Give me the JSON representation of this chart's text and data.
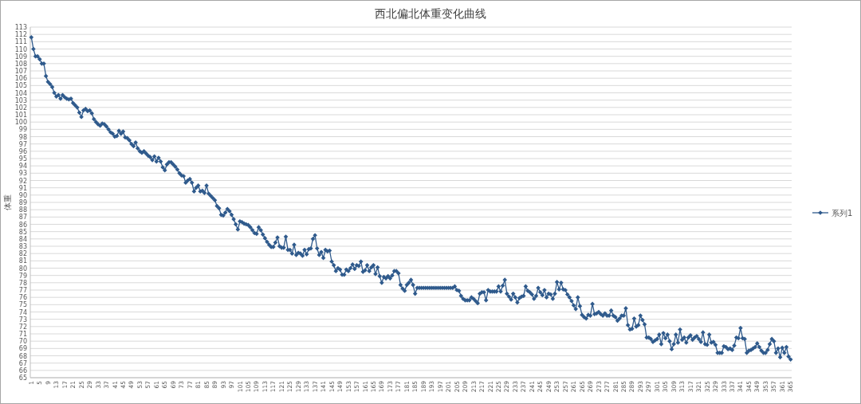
{
  "chart_data": {
    "type": "line",
    "title": "西北偏北体重变化曲线",
    "ylabel": "体重",
    "categories": [
      "1",
      null,
      null,
      null,
      "5",
      null,
      null,
      null,
      "9",
      null,
      null,
      null,
      "13",
      null,
      null,
      null,
      "17",
      null,
      null,
      null,
      "21",
      null,
      null,
      null,
      "25",
      null,
      null,
      null,
      "29",
      null,
      null,
      null,
      "33",
      null,
      null,
      null,
      "37",
      null,
      null,
      null,
      "41",
      null,
      null,
      null,
      "45",
      null,
      null,
      null,
      "49",
      null,
      null,
      null,
      "53",
      null,
      null,
      null,
      "57",
      null,
      null,
      null,
      "61",
      null,
      null,
      null,
      "65",
      null,
      null,
      null,
      "69",
      null,
      null,
      null,
      "73",
      null,
      null,
      null,
      "77",
      null,
      null,
      null,
      "81",
      null,
      null,
      null,
      "85",
      null,
      null,
      null,
      "89",
      null,
      null,
      null,
      "93",
      null,
      null,
      null,
      "97",
      null,
      null,
      null,
      "101",
      null,
      null,
      null,
      "105",
      null,
      null,
      null,
      "109",
      null,
      null,
      null,
      "113",
      null,
      null,
      null,
      "117",
      null,
      null,
      null,
      "121",
      null,
      null,
      null,
      "125",
      null,
      null,
      null,
      "129",
      null,
      null,
      null,
      "133",
      null,
      null,
      null,
      "137",
      null,
      null,
      null,
      "141",
      null,
      null,
      null,
      "145",
      null,
      null,
      null,
      "149",
      null,
      null,
      null,
      "153",
      null,
      null,
      null,
      "157",
      null,
      null,
      null,
      "161",
      null,
      null,
      null,
      "165",
      null,
      null,
      null,
      "169",
      null,
      null,
      null,
      "173",
      null,
      null,
      null,
      "177",
      null,
      null,
      null,
      "181",
      null,
      null,
      null,
      "185",
      null,
      null,
      null,
      "189",
      null,
      null,
      null,
      "193",
      null,
      null,
      null,
      "197",
      null,
      null,
      null,
      "201",
      null,
      null,
      null,
      "205",
      null,
      null,
      null,
      "209",
      null,
      null,
      null,
      "213",
      null,
      null,
      null,
      "217",
      null,
      null,
      null,
      "221",
      null,
      null,
      null,
      "225",
      null,
      null,
      null,
      "229",
      null,
      null,
      null,
      "233",
      null,
      null,
      null,
      "237",
      null,
      null,
      null,
      "241",
      null,
      null,
      null,
      "245",
      null,
      null,
      null,
      "249",
      null,
      null,
      null,
      "253",
      null,
      null,
      null,
      "257",
      null,
      null,
      null,
      "261",
      null,
      null,
      null,
      "265",
      null,
      null,
      null,
      "269",
      null,
      null,
      null,
      "273",
      null,
      null,
      null,
      "277",
      null,
      null,
      null,
      "281",
      null,
      null,
      null,
      "285",
      null,
      null,
      null,
      "289",
      null,
      null,
      null,
      "293",
      null,
      null,
      null,
      "297",
      null,
      null,
      null,
      "301",
      null,
      null,
      null,
      "305",
      null,
      null,
      null,
      "309",
      null,
      null,
      null,
      "313",
      null,
      null,
      null,
      "317",
      null,
      null,
      null,
      "321",
      null,
      null,
      null,
      "325",
      null,
      null,
      null,
      "329",
      null,
      null,
      null,
      "333",
      null,
      null,
      null,
      "337",
      null,
      null,
      null,
      "341",
      null,
      null,
      null,
      "345",
      null,
      null,
      null,
      "349",
      null,
      null,
      null,
      "353",
      null,
      null,
      null,
      "357",
      null,
      null,
      null,
      "361",
      null,
      null,
      null,
      "365"
    ],
    "series": [
      {
        "name": "系列1",
        "color": "#2f5a8c",
        "values": [
          111.6,
          110.0,
          109.0,
          109.0,
          108.6,
          108.0,
          108.0,
          106.3,
          105.5,
          105.2,
          104.8,
          104.0,
          103.5,
          103.7,
          103.2,
          103.7,
          103.4,
          103.2,
          103.1,
          103.2,
          102.6,
          102.3,
          102.0,
          101.3,
          100.7,
          101.6,
          101.8,
          101.5,
          101.6,
          101.2,
          100.4,
          100.0,
          99.7,
          99.5,
          99.8,
          99.7,
          99.4,
          99.0,
          98.6,
          98.4,
          98.0,
          98.1,
          98.8,
          98.4,
          98.7,
          97.9,
          97.8,
          97.5,
          97.0,
          96.7,
          97.2,
          96.4,
          96.0,
          95.8,
          96.0,
          95.7,
          95.4,
          95.2,
          94.8,
          95.3,
          94.6,
          95.1,
          94.6,
          93.8,
          93.4,
          94.2,
          94.5,
          94.5,
          94.2,
          93.9,
          93.5,
          93.0,
          92.7,
          92.6,
          91.7,
          92.0,
          92.2,
          91.7,
          90.5,
          91.0,
          91.3,
          90.5,
          90.6,
          90.3,
          91.3,
          90.2,
          89.9,
          89.6,
          89.3,
          88.5,
          88.2,
          87.3,
          87.2,
          87.6,
          88.1,
          87.8,
          87.3,
          86.7,
          86.0,
          85.3,
          86.4,
          86.3,
          86.1,
          86.0,
          85.9,
          85.6,
          85.2,
          84.8,
          84.7,
          85.6,
          85.2,
          84.6,
          84.1,
          83.6,
          83.2,
          82.9,
          82.9,
          83.5,
          84.2,
          83.0,
          82.8,
          82.8,
          84.3,
          82.5,
          82.5,
          82.0,
          83.2,
          81.8,
          82.1,
          82.0,
          81.7,
          82.5,
          81.9,
          82.6,
          82.7,
          84.0,
          84.5,
          82.7,
          81.8,
          82.2,
          81.4,
          82.5,
          82.3,
          82.4,
          80.9,
          80.4,
          79.6,
          80.0,
          79.8,
          79.1,
          79.1,
          79.8,
          79.6,
          80.0,
          80.5,
          79.9,
          80.4,
          80.3,
          80.9,
          79.5,
          79.7,
          80.4,
          79.6,
          80.1,
          80.4,
          79.2,
          80.1,
          78.9,
          78.0,
          78.8,
          78.6,
          78.9,
          78.6,
          79.0,
          79.6,
          79.6,
          79.3,
          77.7,
          77.2,
          76.9,
          77.7,
          78.0,
          78.4,
          77.7,
          76.5,
          77.3,
          77.3,
          77.3,
          77.3,
          77.3,
          77.3,
          77.3,
          77.3,
          77.3,
          77.3,
          77.3,
          77.3,
          77.3,
          77.3,
          77.3,
          77.3,
          77.3,
          77.3,
          77.5,
          77.0,
          76.9,
          76.2,
          75.8,
          75.6,
          75.6,
          75.6,
          76.0,
          75.8,
          75.5,
          75.2,
          76.5,
          76.7,
          76.7,
          75.6,
          77.0,
          76.8,
          76.8,
          76.8,
          76.8,
          77.5,
          76.8,
          77.6,
          78.4,
          76.5,
          76.1,
          75.7,
          76.5,
          76.0,
          75.3,
          75.9,
          76.1,
          76.2,
          77.5,
          76.9,
          76.7,
          76.4,
          75.8,
          76.2,
          77.3,
          76.7,
          76.3,
          77.0,
          76.0,
          76.5,
          76.4,
          75.8,
          76.5,
          78.1,
          77.1,
          78.0,
          77.1,
          77.0,
          76.4,
          76.0,
          75.5,
          74.9,
          74.4,
          76.0,
          74.8,
          73.6,
          73.3,
          73.1,
          73.6,
          73.5,
          75.1,
          73.7,
          73.8,
          74.0,
          73.7,
          73.5,
          73.8,
          73.5,
          73.5,
          74.2,
          73.5,
          73.3,
          72.8,
          73.1,
          73.5,
          73.5,
          74.5,
          72.2,
          71.6,
          71.7,
          73.1,
          72.0,
          72.2,
          73.5,
          72.9,
          72.3,
          70.5,
          70.5,
          70.3,
          69.9,
          70.1,
          70.3,
          70.9,
          69.6,
          71.1,
          70.4,
          70.9,
          70.0,
          68.9,
          69.6,
          70.9,
          69.8,
          71.6,
          70.2,
          70.5,
          69.8,
          70.5,
          70.8,
          70.2,
          70.5,
          70.7,
          70.3,
          69.9,
          71.2,
          69.6,
          69.5,
          70.9,
          69.8,
          69.9,
          69.5,
          68.4,
          68.4,
          68.4,
          69.3,
          69.2,
          68.9,
          69.0,
          68.8,
          69.4,
          70.5,
          70.4,
          71.8,
          70.4,
          70.3,
          68.4,
          68.7,
          68.8,
          69.0,
          69.2,
          69.7,
          69.2,
          68.7,
          68.4,
          68.4,
          68.8,
          69.6,
          70.3,
          70.0,
          68.4,
          69.0,
          67.8,
          69.1,
          68.4,
          69.2,
          67.9,
          67.5
        ]
      }
    ],
    "ylim": [
      65,
      113
    ],
    "yticks": [
      65,
      66,
      67,
      68,
      69,
      70,
      71,
      72,
      73,
      74,
      75,
      76,
      77,
      78,
      79,
      80,
      81,
      82,
      83,
      84,
      85,
      86,
      87,
      88,
      89,
      90,
      91,
      92,
      93,
      94,
      95,
      96,
      97,
      98,
      99,
      100,
      101,
      102,
      103,
      104,
      105,
      106,
      107,
      108,
      109,
      110,
      111,
      112,
      113
    ],
    "grid": "y",
    "legend": "right",
    "marker": "diamond",
    "line_style": "solid"
  }
}
